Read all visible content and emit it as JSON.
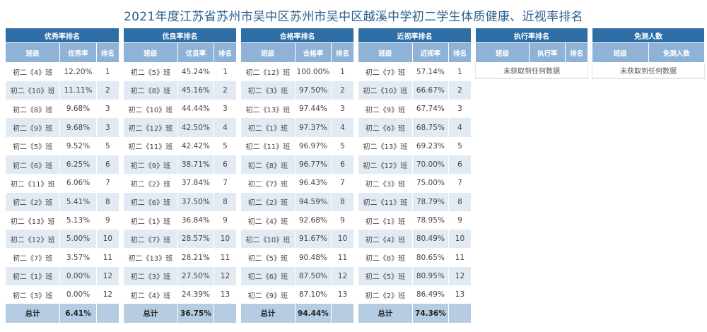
{
  "title": "2021年度江苏省苏州市吴中区苏州市吴中区越溪中学初二学生体质健康、近视率排名",
  "panels": [
    {
      "heading": "优秀率排名",
      "columns": [
        "班级",
        "优秀率",
        "排名"
      ],
      "rows": [
        [
          "初二《4》班",
          "12.20%",
          "1"
        ],
        [
          "初二《10》班",
          "11.11%",
          "2"
        ],
        [
          "初二《8》班",
          "9.68%",
          "3"
        ],
        [
          "初二《9》班",
          "9.68%",
          "3"
        ],
        [
          "初二《5》班",
          "9.52%",
          "5"
        ],
        [
          "初二《6》班",
          "6.25%",
          "6"
        ],
        [
          "初二《11》班",
          "6.06%",
          "7"
        ],
        [
          "初二《2》班",
          "5.41%",
          "8"
        ],
        [
          "初二《13》班",
          "5.13%",
          "9"
        ],
        [
          "初二《12》班",
          "5.00%",
          "10"
        ],
        [
          "初二《7》班",
          "3.57%",
          "11"
        ],
        [
          "初二《1》班",
          "0.00%",
          "12"
        ],
        [
          "初二《3》班",
          "0.00%",
          "12"
        ]
      ],
      "total_label": "总计",
      "total_value": "6.41%"
    },
    {
      "heading": "优良率排名",
      "columns": [
        "班级",
        "优良率",
        "排名"
      ],
      "rows": [
        [
          "初二《5》班",
          "45.24%",
          "1"
        ],
        [
          "初二《8》班",
          "45.16%",
          "2"
        ],
        [
          "初二《10》班",
          "44.44%",
          "3"
        ],
        [
          "初二《12》班",
          "42.50%",
          "4"
        ],
        [
          "初二《11》班",
          "42.42%",
          "5"
        ],
        [
          "初二《9》班",
          "38.71%",
          "6"
        ],
        [
          "初二《2》班",
          "37.84%",
          "7"
        ],
        [
          "初二《6》班",
          "37.50%",
          "8"
        ],
        [
          "初二《1》班",
          "36.84%",
          "9"
        ],
        [
          "初二《7》班",
          "28.57%",
          "10"
        ],
        [
          "初二《13》班",
          "28.21%",
          "11"
        ],
        [
          "初二《3》班",
          "27.50%",
          "12"
        ],
        [
          "初二《4》班",
          "24.39%",
          "13"
        ]
      ],
      "total_label": "总计",
      "total_value": "36.75%"
    },
    {
      "heading": "合格率排名",
      "columns": [
        "班级",
        "合格率",
        "排名"
      ],
      "rows": [
        [
          "初二《12》班",
          "100.00%",
          "1"
        ],
        [
          "初二《3》班",
          "97.50%",
          "2"
        ],
        [
          "初二《13》班",
          "97.44%",
          "3"
        ],
        [
          "初二《1》班",
          "97.37%",
          "4"
        ],
        [
          "初二《11》班",
          "96.97%",
          "5"
        ],
        [
          "初二《8》班",
          "96.77%",
          "6"
        ],
        [
          "初二《7》班",
          "96.43%",
          "7"
        ],
        [
          "初二《2》班",
          "94.59%",
          "8"
        ],
        [
          "初二《4》班",
          "92.68%",
          "9"
        ],
        [
          "初二《10》班",
          "91.67%",
          "10"
        ],
        [
          "初二《5》班",
          "90.48%",
          "11"
        ],
        [
          "初二《6》班",
          "87.50%",
          "12"
        ],
        [
          "初二《9》班",
          "87.10%",
          "13"
        ]
      ],
      "total_label": "总计",
      "total_value": "94.44%"
    },
    {
      "heading": "近视率排名",
      "columns": [
        "班级",
        "近视率",
        "排名"
      ],
      "rows": [
        [
          "初二《7》班",
          "57.14%",
          "1"
        ],
        [
          "初二《10》班",
          "66.67%",
          "2"
        ],
        [
          "初二《9》班",
          "67.74%",
          "3"
        ],
        [
          "初二《6》班",
          "68.75%",
          "4"
        ],
        [
          "初二《13》班",
          "69.23%",
          "5"
        ],
        [
          "初二《12》班",
          "70.00%",
          "6"
        ],
        [
          "初二《3》班",
          "75.00%",
          "7"
        ],
        [
          "初二《11》班",
          "78.79%",
          "8"
        ],
        [
          "初二《1》班",
          "78.95%",
          "9"
        ],
        [
          "初二《4》班",
          "80.49%",
          "10"
        ],
        [
          "初二《8》班",
          "80.65%",
          "11"
        ],
        [
          "初二《5》班",
          "80.95%",
          "12"
        ],
        [
          "初二《2》班",
          "86.49%",
          "13"
        ]
      ],
      "total_label": "总计",
      "total_value": "74.36%"
    },
    {
      "heading": "执行率排名",
      "columns": [
        "班级",
        "执行率",
        "排名"
      ],
      "empty_text": "未获取到任何数据"
    },
    {
      "heading": "免测人数",
      "columns": [
        "班级",
        "免测人数"
      ],
      "empty_text": "未获取到任何数据"
    }
  ]
}
